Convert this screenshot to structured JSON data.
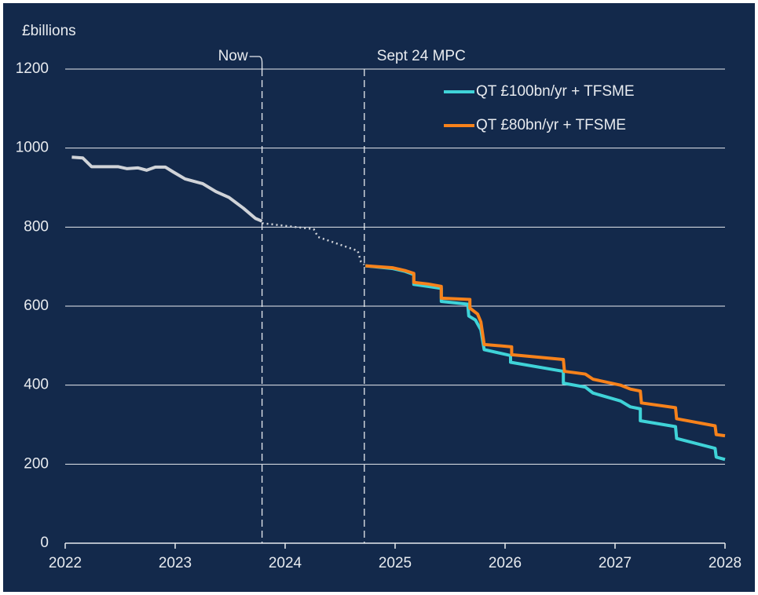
{
  "chart_data": {
    "type": "line",
    "ylabel": "£billions",
    "xlim": [
      2022,
      2028
    ],
    "xticks": [
      2022,
      2023,
      2024,
      2025,
      2026,
      2027,
      2028
    ],
    "ylim": [
      0,
      1200
    ],
    "yticks": [
      0,
      200,
      400,
      600,
      800,
      1000,
      1200
    ],
    "grid": true,
    "legend": "upper right",
    "annotations": [
      {
        "text": "Now",
        "x": 2023.79
      },
      {
        "text": "Sept 24 MPC",
        "x": 2024.72
      }
    ],
    "series": [
      {
        "color": "#d0d3d8",
        "dash": "solid",
        "x": [
          2022.06,
          2022.16,
          2022.24,
          2022.48,
          2022.56,
          2022.66,
          2022.74,
          2022.82,
          2022.91,
          2022.98,
          2023.09,
          2023.25,
          2023.37,
          2023.49,
          2023.62,
          2023.73,
          2023.79
        ],
        "values": [
          977,
          975,
          953,
          953,
          948,
          950,
          944,
          952,
          952,
          940,
          922,
          910,
          890,
          875,
          848,
          822,
          815
        ]
      },
      {
        "color": "#d0d3d8",
        "dash": "dotted",
        "x": [
          2023.79,
          2024.26,
          2024.3,
          2024.66,
          2024.69,
          2024.72
        ],
        "values": [
          810,
          795,
          775,
          740,
          712,
          705
        ]
      },
      {
        "name": "QT £100bn/yr + TFSME",
        "color": "#3fd3d8",
        "dash": "solid",
        "x": [
          2024.73,
          2024.98,
          2025.09,
          2025.17,
          2025.17,
          2025.3,
          2025.42,
          2025.42,
          2025.66,
          2025.67,
          2025.73,
          2025.78,
          2025.81,
          2026.05,
          2026.05,
          2026.53,
          2026.53,
          2026.73,
          2026.8,
          2027.05,
          2027.14,
          2027.23,
          2027.23,
          2027.55,
          2027.56,
          2027.91,
          2027.92,
          2028
        ],
        "values": [
          702,
          695,
          688,
          680,
          655,
          650,
          645,
          612,
          605,
          575,
          565,
          540,
          490,
          475,
          458,
          435,
          405,
          395,
          380,
          360,
          345,
          340,
          310,
          295,
          265,
          240,
          218,
          212
        ]
      },
      {
        "name": "QT £80bn/yr + TFSME",
        "color": "#f7821b",
        "dash": "solid",
        "x": [
          2024.73,
          2024.98,
          2025.09,
          2025.17,
          2025.17,
          2025.3,
          2025.42,
          2025.42,
          2025.68,
          2025.68,
          2025.75,
          2025.78,
          2025.81,
          2026.06,
          2026.06,
          2026.53,
          2026.54,
          2026.73,
          2026.8,
          2027.05,
          2027.14,
          2027.23,
          2027.24,
          2027.55,
          2027.56,
          2027.91,
          2027.92,
          2028
        ],
        "values": [
          702,
          697,
          690,
          683,
          660,
          656,
          650,
          620,
          617,
          595,
          580,
          560,
          503,
          497,
          477,
          465,
          435,
          428,
          415,
          400,
          390,
          385,
          355,
          343,
          315,
          297,
          275,
          272
        ]
      }
    ]
  }
}
